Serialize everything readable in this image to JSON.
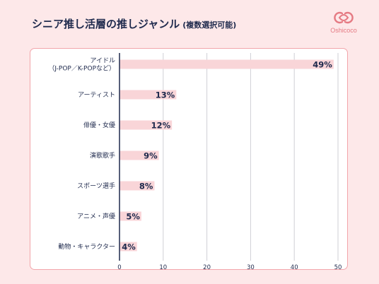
{
  "header": {
    "title": "シニア推し活層の推しジャンル",
    "subtitle": "(複数選択可能)"
  },
  "logo": {
    "brand": "Oshicoco"
  },
  "colors": {
    "bar": "#f9d5d8",
    "axis": "#1f2a4d",
    "grid": "#cfcfd6",
    "accent": "#e57a83",
    "background": "#fde8e9"
  },
  "chart_data": {
    "type": "bar",
    "orientation": "horizontal",
    "categories": [
      "アイドル\n（J-POP／K-POPなど）",
      "アーティスト",
      "俳優・女優",
      "演歌歌手",
      "スポーツ選手",
      "アニメ・声優",
      "動物・キャラクター"
    ],
    "values": [
      49,
      13,
      12,
      9,
      8,
      5,
      4
    ],
    "value_labels": [
      "49%",
      "13%",
      "12%",
      "9%",
      "8%",
      "5%",
      "4%"
    ],
    "xticks": [
      0,
      10,
      20,
      30,
      40,
      50
    ],
    "xlim": [
      0,
      50
    ],
    "grid": true,
    "legend": "none"
  }
}
